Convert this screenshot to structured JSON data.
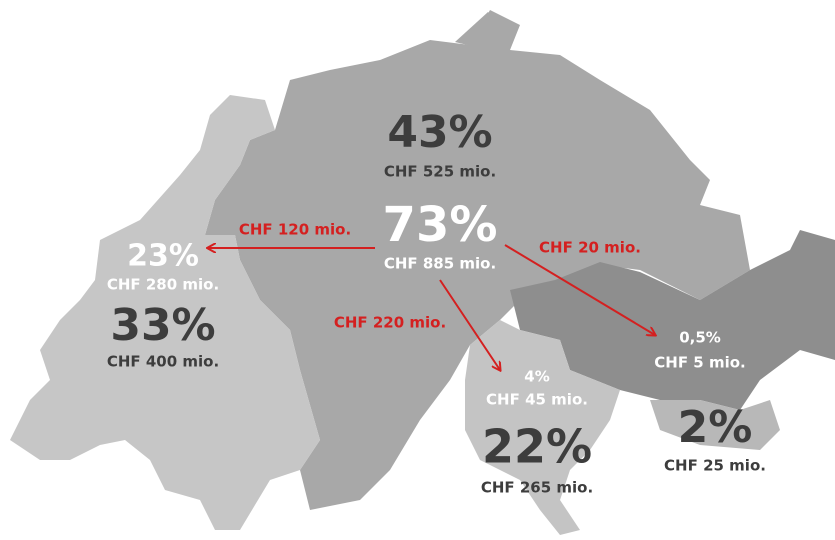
{
  "regions": [
    {
      "share": "43%",
      "amount": "CHF 525 mio."
    },
    {
      "share": "73%",
      "amount": "CHF 885 mio."
    },
    {
      "share": "23%",
      "amount": "CHF 280 mio."
    },
    {
      "share": "33%",
      "amount": "CHF 400 mio."
    },
    {
      "share": "0,5%",
      "amount": "CHF 5 mio."
    },
    {
      "share": "2%",
      "amount": "CHF 25 mio."
    },
    {
      "share": "4%",
      "amount": "CHF 45 mio."
    },
    {
      "share": "22%",
      "amount": "CHF 265 mio."
    }
  ],
  "flows": [
    {
      "label": "CHF 120 mio."
    },
    {
      "label": "CHF 20 mio."
    },
    {
      "label": "CHF 220 mio."
    }
  ]
}
